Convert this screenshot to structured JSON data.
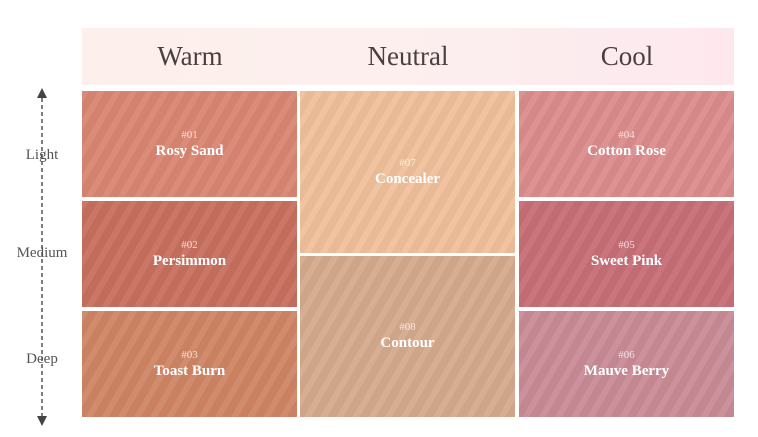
{
  "columns": [
    "Warm",
    "Neutral",
    "Cool"
  ],
  "rows": [
    "Light",
    "Medium",
    "Deep"
  ],
  "swatches": [
    {
      "number": "#01",
      "name": "Rosy Sand"
    },
    {
      "number": "#02",
      "name": "Persimmon"
    },
    {
      "number": "#03",
      "name": "Toast Burn"
    },
    {
      "number": "#07",
      "name": "Concealer"
    },
    {
      "number": "#08",
      "name": "Contour"
    },
    {
      "number": "#04",
      "name": "Cotton Rose"
    },
    {
      "number": "#05",
      "name": "Sweet Pink"
    },
    {
      "number": "#06",
      "name": "Mauve Berry"
    }
  ]
}
